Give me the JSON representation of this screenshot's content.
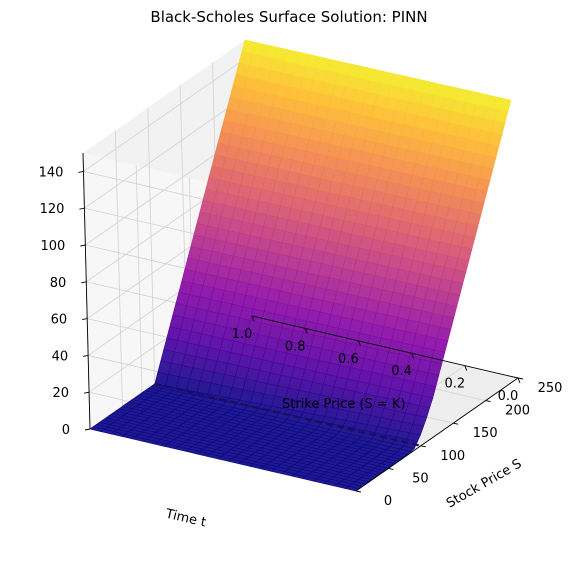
{
  "chart_data": {
    "type": "surface3d",
    "title": "Black-Scholes Surface Solution: PINN",
    "xlabel": "Stock Price S",
    "ylabel": "Time t",
    "zlabel": "",
    "x_ticks": [
      "0",
      "50",
      "100",
      "150",
      "200",
      "250"
    ],
    "y_ticks": [
      "0.0",
      "0.2",
      "0.4",
      "0.6",
      "0.8",
      "1.0"
    ],
    "z_ticks": [
      "0",
      "20",
      "40",
      "60",
      "80",
      "100",
      "120",
      "140"
    ],
    "xlim": [
      0,
      250
    ],
    "ylim": [
      0,
      1.0
    ],
    "zlim": [
      0,
      150
    ],
    "colormap": "plasma",
    "surface": {
      "S": [
        0,
        50,
        80,
        90,
        100,
        110,
        120,
        150,
        200,
        250
      ],
      "V_at_t0": [
        0,
        0,
        0.1,
        1.0,
        6.0,
        13.0,
        21.0,
        51.0,
        101.0,
        151.0
      ],
      "V_at_t1": [
        0,
        0,
        0,
        0,
        0,
        10,
        20,
        50,
        100,
        150
      ]
    },
    "strike_line": {
      "S": 100,
      "z": 0,
      "style": "dashed",
      "color": "#1b0d5a"
    },
    "annotation": "Strike Price (S = K)"
  }
}
